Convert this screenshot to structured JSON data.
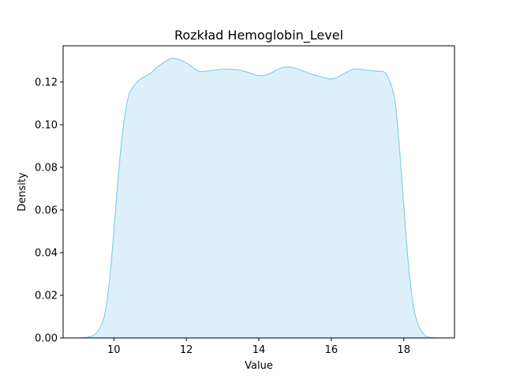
{
  "chart_data": {
    "type": "area",
    "title": "Rozkład Hemoglobin_Level",
    "xlabel": "Value",
    "ylabel": "Density",
    "xlim": [
      8.6,
      19.4
    ],
    "ylim": [
      0,
      0.137
    ],
    "xticks": [
      10,
      12,
      14,
      16,
      18
    ],
    "yticks": [
      0.0,
      0.02,
      0.04,
      0.06,
      0.08,
      0.1,
      0.12
    ],
    "ytick_labels": [
      "0.00",
      "0.02",
      "0.04",
      "0.06",
      "0.08",
      "0.10",
      "0.12"
    ],
    "grid": false,
    "line_color": "#87ceeb",
    "fill_color": "#ddf0f9",
    "series": [
      {
        "x": [
          9.1,
          9.3,
          9.5,
          9.7,
          9.8,
          9.9,
          10.0,
          10.1,
          10.2,
          10.3,
          10.4,
          10.5,
          10.7,
          11.0,
          11.2,
          11.5,
          11.7,
          12.0,
          12.3,
          12.5,
          13.0,
          13.5,
          14.0,
          14.3,
          14.6,
          14.8,
          15.0,
          15.5,
          16.0,
          16.3,
          16.6,
          16.8,
          17.0,
          17.3,
          17.5,
          17.7,
          17.8,
          17.9,
          18.0,
          18.1,
          18.2,
          18.3,
          18.4,
          18.5,
          18.6,
          18.7,
          18.9
        ],
        "y": [
          0.0,
          0.0005,
          0.002,
          0.008,
          0.016,
          0.03,
          0.05,
          0.071,
          0.09,
          0.104,
          0.113,
          0.117,
          0.121,
          0.124,
          0.127,
          0.1305,
          0.131,
          0.129,
          0.1255,
          0.125,
          0.126,
          0.1255,
          0.123,
          0.124,
          0.1265,
          0.127,
          0.1265,
          0.1235,
          0.1215,
          0.1235,
          0.126,
          0.126,
          0.1255,
          0.125,
          0.124,
          0.116,
          0.105,
          0.085,
          0.062,
          0.04,
          0.023,
          0.012,
          0.006,
          0.003,
          0.001,
          0.0003,
          0.0
        ]
      }
    ]
  }
}
